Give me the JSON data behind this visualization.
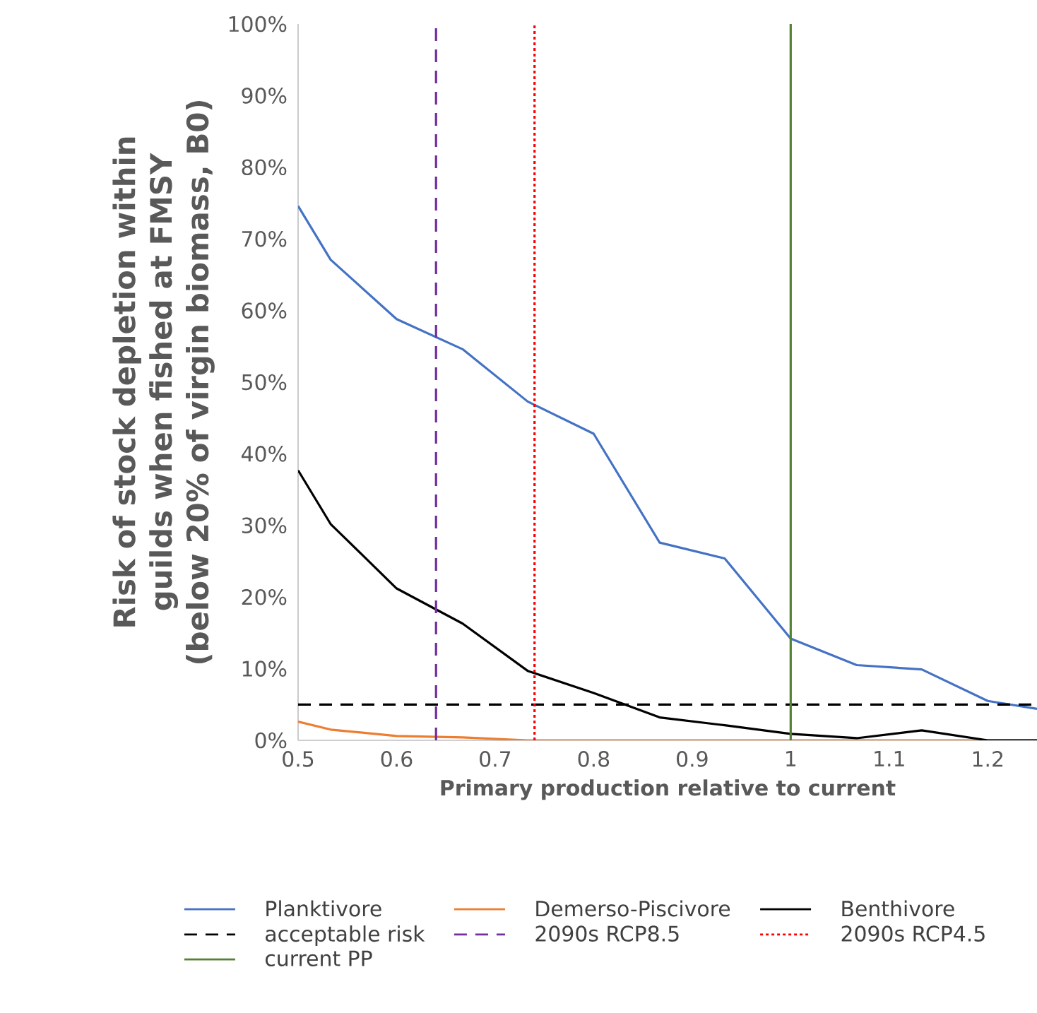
{
  "chart_data": {
    "type": "line",
    "xlabel": "Primary production relative to current",
    "ylabel": "Risk of stock depletion within guilds when fished at FMSY (below 20% of virgin biomass, B0)",
    "x": [
      0.5,
      0.533,
      0.6,
      0.667,
      0.733,
      0.8,
      0.867,
      0.933,
      1.0,
      1.067,
      1.133,
      1.2,
      1.25
    ],
    "series": [
      {
        "name": "Planktivore",
        "color": "#4472c4",
        "values": [
          74.6,
          67.1,
          58.8,
          54.6,
          47.3,
          42.8,
          27.6,
          25.4,
          14.2,
          10.5,
          9.9,
          5.5,
          4.4
        ]
      },
      {
        "name": "Demerso-Piscivore",
        "color": "#ed7d31",
        "values": [
          2.6,
          1.5,
          0.6,
          0.4,
          0,
          0,
          0,
          0,
          0,
          0,
          0,
          0,
          0
        ]
      },
      {
        "name": "Benthivore",
        "color": "#000000",
        "values": [
          37.7,
          30.2,
          21.2,
          16.3,
          9.7,
          6.6,
          3.2,
          2.1,
          0.9,
          0.3,
          1.4,
          0,
          0
        ]
      }
    ],
    "ref_lines": [
      {
        "axis": "y",
        "value": 5,
        "label": "acceptable risk",
        "color": "#000000",
        "line_style": "dashed"
      },
      {
        "axis": "x",
        "value": 0.64,
        "label": "2090s RCP8.5",
        "color": "#7030a0",
        "line_style": "dashed"
      },
      {
        "axis": "x",
        "value": 0.74,
        "label": "2090s RCP4.5",
        "color": "#ff0000",
        "line_style": "dotted"
      },
      {
        "axis": "x",
        "value": 1.0,
        "label": "current PP",
        "color": "#548235",
        "line_style": "solid"
      }
    ],
    "xlim": [
      0.5,
      1.25
    ],
    "ylim": [
      0,
      100
    ],
    "xticks": [
      0.5,
      0.6,
      0.7,
      0.8,
      0.9,
      1,
      1.1,
      1.2
    ],
    "yticks": [
      {
        "value": 0,
        "label": "0%"
      },
      {
        "value": 10,
        "label": "10%"
      },
      {
        "value": 20,
        "label": "20%"
      },
      {
        "value": 30,
        "label": "30%"
      },
      {
        "value": 40,
        "label": "40%"
      },
      {
        "value": 50,
        "label": "50%"
      },
      {
        "value": 60,
        "label": "60%"
      },
      {
        "value": 70,
        "label": "70%"
      },
      {
        "value": 80,
        "label": "80%"
      },
      {
        "value": 90,
        "label": "90%"
      },
      {
        "value": 100,
        "label": "100%"
      }
    ],
    "grid": false,
    "legend": "bottom",
    "marker": "none"
  }
}
